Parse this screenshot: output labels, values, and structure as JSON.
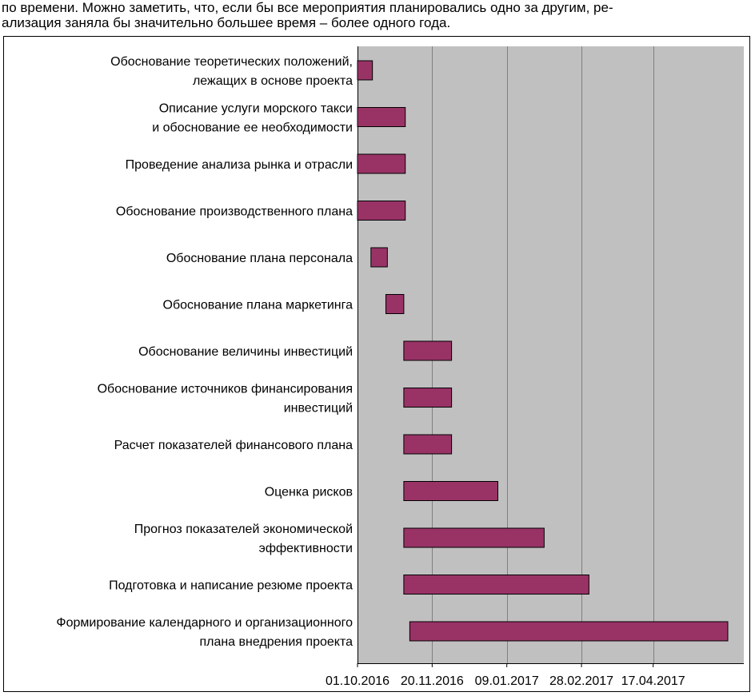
{
  "intro_text": {
    "line1": "по времени. Можно заметить, что, если бы все мероприятия планировались одно за другим, ре-",
    "line2": "ализация заняла бы значительно большее время – более одного года."
  },
  "colors": {
    "plot_background": "#c0c0c0",
    "bar_fill": "#993366",
    "bar_stroke": "#000000",
    "gridline": "#808080"
  },
  "chart_data": {
    "type": "bar",
    "orientation": "horizontal-gantt",
    "title": "",
    "xlabel": "",
    "ylabel": "",
    "grid": true,
    "x_ticks": [
      "01.10.2016",
      "20.11.2016",
      "09.01.2017",
      "28.02.2017",
      "17.04.2017"
    ],
    "x_tick_days": [
      0,
      50,
      100,
      150,
      198
    ],
    "xlim_days": [
      0,
      248
    ],
    "tasks": [
      {
        "name_lines": [
          "Обоснование теоретических положений,",
          "лежащих в основе проекта"
        ],
        "start_day": 0,
        "end_day": 10
      },
      {
        "name_lines": [
          "Описание услуги морского такси",
          "и обоснование ее необходимости"
        ],
        "start_day": 0,
        "end_day": 32
      },
      {
        "name_lines": [
          "Проведение анализа рынка и отрасли"
        ],
        "start_day": 0,
        "end_day": 32
      },
      {
        "name_lines": [
          "Обоснование производственного плана"
        ],
        "start_day": 0,
        "end_day": 32
      },
      {
        "name_lines": [
          "Обоснование плана персонала"
        ],
        "start_day": 9,
        "end_day": 20
      },
      {
        "name_lines": [
          "Обоснование плана маркетинга"
        ],
        "start_day": 19,
        "end_day": 31
      },
      {
        "name_lines": [
          "Обоснование величины инвестиций"
        ],
        "start_day": 31,
        "end_day": 63
      },
      {
        "name_lines": [
          "Обоснование источников финансирования",
          "инвестиций"
        ],
        "start_day": 31,
        "end_day": 63
      },
      {
        "name_lines": [
          "Расчет показателей финансового плана"
        ],
        "start_day": 31,
        "end_day": 63
      },
      {
        "name_lines": [
          "Оценка рисков"
        ],
        "start_day": 31,
        "end_day": 94
      },
      {
        "name_lines": [
          "Прогноз показателей экономической",
          "эффективности"
        ],
        "start_day": 31,
        "end_day": 125
      },
      {
        "name_lines": [
          "Подготовка и написание резюме проекта"
        ],
        "start_day": 31,
        "end_day": 155
      },
      {
        "name_lines": [
          "Формирование календарного и организационного",
          "плана внедрения проекта"
        ],
        "start_day": 35,
        "end_day": 248
      }
    ]
  }
}
